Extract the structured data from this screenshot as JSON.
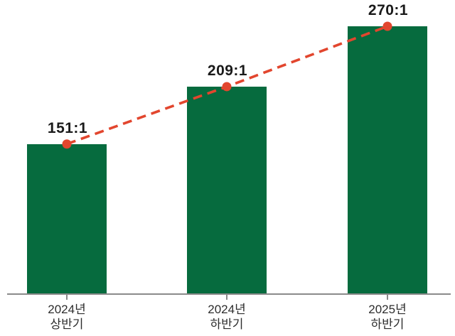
{
  "chart_data": {
    "type": "bar",
    "categories": [
      "2024년 상반기",
      "2024년 하반기",
      "2025년 하반기"
    ],
    "category_lines": [
      [
        "2024년",
        "상반기"
      ],
      [
        "2024년",
        "하반기"
      ],
      [
        "2025년",
        "하반기"
      ]
    ],
    "values": [
      151,
      209,
      270
    ],
    "data_labels": [
      "151:1",
      "209:1",
      "270:1"
    ],
    "overlay_line": {
      "type": "line",
      "style": "dashed",
      "values": [
        151,
        209,
        270
      ]
    },
    "title": "",
    "xlabel": "",
    "ylabel": "",
    "ylim": [
      0,
      280
    ],
    "grid": false,
    "legend": false,
    "colors": {
      "bar": "#066b3e",
      "trend_line": "#e2462e",
      "marker": "#e2462e",
      "axis": "#8a8a8a",
      "value_label": "#1a1a1a",
      "category_label": "#2d2d2d",
      "background": "#ffffff"
    }
  }
}
